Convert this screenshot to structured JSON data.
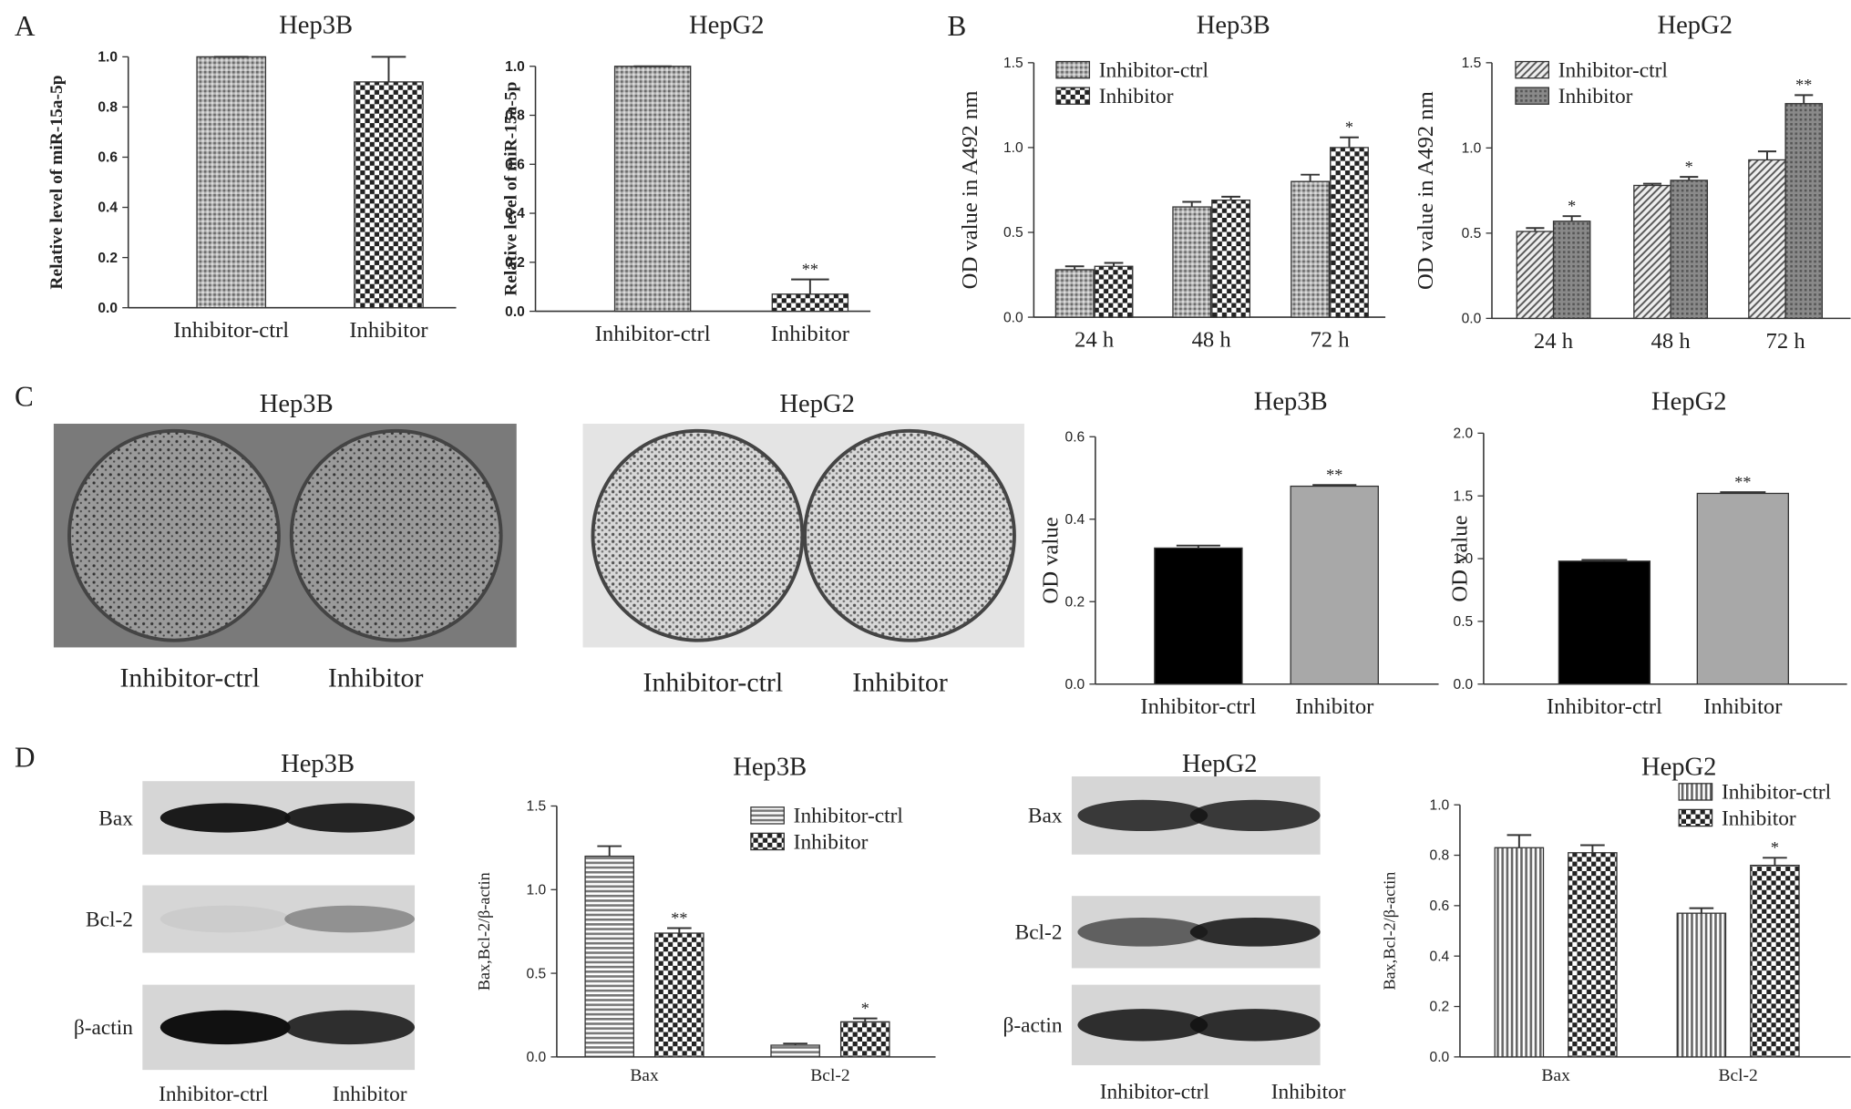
{
  "panels": [
    "A",
    "B",
    "C",
    "D"
  ],
  "chart_data": [
    {
      "type": "bar",
      "title": "Hep3B",
      "ylabel": "Relative level of miR-15a-5p",
      "categories": [
        "Inhibitor-ctrl",
        "Inhibitor"
      ],
      "values": [
        1.0,
        0.9
      ],
      "errors": [
        0,
        0.1
      ],
      "significance": [
        null,
        null
      ],
      "patterns": [
        "dense",
        "checker"
      ],
      "ylim": [
        0,
        1.0
      ],
      "yticks": [
        {
          "value": 0,
          "label": "0.0"
        },
        0.2,
        0.4,
        0.6,
        0.8,
        {
          "value": 1.0,
          "label": "1.0"
        }
      ]
    },
    {
      "type": "bar",
      "title": "HepG2",
      "ylabel": "Relative level of miR-15a-5p",
      "categories": [
        "Inhibitor-ctrl",
        "Inhibitor"
      ],
      "values": [
        1.0,
        0.07
      ],
      "errors": [
        0,
        0.06
      ],
      "significance": [
        null,
        "**"
      ],
      "patterns": [
        "dense",
        "checker"
      ],
      "ylim": [
        0,
        1.0
      ],
      "yticks": [
        {
          "value": 0,
          "label": "0.0"
        },
        0.2,
        0.4,
        0.6,
        0.8,
        {
          "value": 1.0,
          "label": "1.0"
        }
      ]
    },
    {
      "type": "bar",
      "title": "Hep3B",
      "ylabel": "OD value in A492 nm",
      "legend": "upper left",
      "categories": [
        "24 h",
        "48 h",
        "72 h"
      ],
      "series": [
        {
          "name": "Inhibitor-ctrl",
          "pattern": "dense",
          "values": [
            0.28,
            0.65,
            0.8
          ],
          "errors": [
            0.02,
            0.03,
            0.04
          ],
          "significance": [
            null,
            null,
            null
          ]
        },
        {
          "name": "Inhibitor",
          "pattern": "checker",
          "values": [
            0.3,
            0.69,
            1.0
          ],
          "errors": [
            0.02,
            0.02,
            0.06
          ],
          "significance": [
            null,
            null,
            "*"
          ]
        }
      ],
      "ylim": [
        0,
        1.5
      ],
      "yticks": [
        {
          "value": 0,
          "label": "0.0"
        },
        0.5,
        {
          "value": 1.0,
          "label": "1.0"
        },
        1.5
      ]
    },
    {
      "type": "bar",
      "title": "HepG2",
      "ylabel": "OD value in A492 nm",
      "legend": "upper left",
      "categories": [
        "24 h",
        "48 h",
        "72 h"
      ],
      "series": [
        {
          "name": "Inhibitor-ctrl",
          "pattern": "diagonal",
          "values": [
            0.51,
            0.78,
            0.93
          ],
          "errors": [
            0.02,
            0.01,
            0.05
          ],
          "significance": [
            null,
            null,
            null
          ]
        },
        {
          "name": "Inhibitor",
          "pattern": "darkdense",
          "values": [
            0.57,
            0.81,
            1.26
          ],
          "errors": [
            0.03,
            0.02,
            0.05
          ],
          "significance": [
            "*",
            "*",
            "**"
          ]
        }
      ],
      "ylim": [
        0,
        1.5
      ],
      "yticks": [
        {
          "value": 0,
          "label": "0.0"
        },
        0.5,
        {
          "value": 1.0,
          "label": "1.0"
        },
        1.5
      ]
    },
    {
      "type": "bar",
      "title": "Hep3B",
      "ylabel": "OD value",
      "categories": [
        "Inhibitor-ctrl",
        "Inhibitor"
      ],
      "values": [
        0.33,
        0.48
      ],
      "errors": [
        0.006,
        0.003
      ],
      "significance": [
        null,
        "**"
      ],
      "colors": [
        "#000000",
        "#a8a8a8"
      ],
      "ylim": [
        0,
        0.6
      ],
      "yticks": [
        {
          "value": 0,
          "label": "0.0"
        },
        0.2,
        0.4,
        0.6
      ]
    },
    {
      "type": "bar",
      "title": "HepG2",
      "ylabel": "OD value",
      "categories": [
        "Inhibitor-ctrl",
        "Inhibitor"
      ],
      "values": [
        0.98,
        1.52
      ],
      "errors": [
        0.01,
        0.01
      ],
      "significance": [
        null,
        "**"
      ],
      "colors": [
        "#000000",
        "#a8a8a8"
      ],
      "ylim": [
        0,
        2.0
      ],
      "yticks": [
        {
          "value": 0,
          "label": "0.0"
        },
        0.5,
        {
          "value": 1.0,
          "label": "1.0"
        },
        1.5,
        {
          "value": 2.0,
          "label": "2.0"
        }
      ]
    },
    {
      "type": "bar",
      "title": "Hep3B",
      "ylabel": "Bax,Bcl-2/β-actin",
      "legend": "upper right",
      "categories": [
        "Bax",
        "Bcl-2"
      ],
      "series": [
        {
          "name": "Inhibitor-ctrl",
          "pattern": "hlines",
          "values": [
            1.2,
            0.07
          ],
          "errors": [
            0.06,
            0.01
          ],
          "significance": [
            null,
            null
          ]
        },
        {
          "name": "Inhibitor",
          "pattern": "checker",
          "values": [
            0.74,
            0.21
          ],
          "errors": [
            0.03,
            0.02
          ],
          "significance": [
            "**",
            "*"
          ]
        }
      ],
      "ylim": [
        0,
        1.5
      ],
      "yticks": [
        {
          "value": 0,
          "label": "0.0"
        },
        0.5,
        {
          "value": 1.0,
          "label": "1.0"
        },
        1.5
      ]
    },
    {
      "type": "bar",
      "title": "HepG2",
      "ylabel": "Bax,Bcl-2/β-actin",
      "legend": "upper right",
      "categories": [
        "Bax",
        "Bcl-2"
      ],
      "series": [
        {
          "name": "Inhibitor-ctrl",
          "pattern": "vlines",
          "values": [
            0.83,
            0.57
          ],
          "errors": [
            0.05,
            0.02
          ],
          "significance": [
            null,
            null
          ]
        },
        {
          "name": "Inhibitor",
          "pattern": "checker",
          "values": [
            0.81,
            0.76
          ],
          "errors": [
            0.03,
            0.03
          ],
          "significance": [
            null,
            "*"
          ]
        }
      ],
      "ylim": [
        0,
        1.0
      ],
      "yticks": [
        {
          "value": 0,
          "label": "0.0"
        },
        0.2,
        0.4,
        0.6,
        0.8,
        {
          "value": 1.0,
          "label": "1.0"
        }
      ]
    }
  ],
  "plates": [
    {
      "title": "Hep3B",
      "labels": [
        "Inhibitor-ctrl",
        "Inhibitor"
      ]
    },
    {
      "title": "HepG2",
      "labels": [
        "Inhibitor-ctrl",
        "Inhibitor"
      ]
    }
  ],
  "blots": [
    {
      "title": "Hep3B",
      "rows": [
        "Bax",
        "Bcl-2",
        "β-actin"
      ],
      "lanes": [
        "Inhibitor-ctrl",
        "Inhibitor"
      ]
    },
    {
      "title": "HepG2",
      "rows": [
        "Bax",
        "Bcl-2",
        "β-actin"
      ],
      "lanes": [
        "Inhibitor-ctrl",
        "Inhibitor"
      ]
    }
  ]
}
